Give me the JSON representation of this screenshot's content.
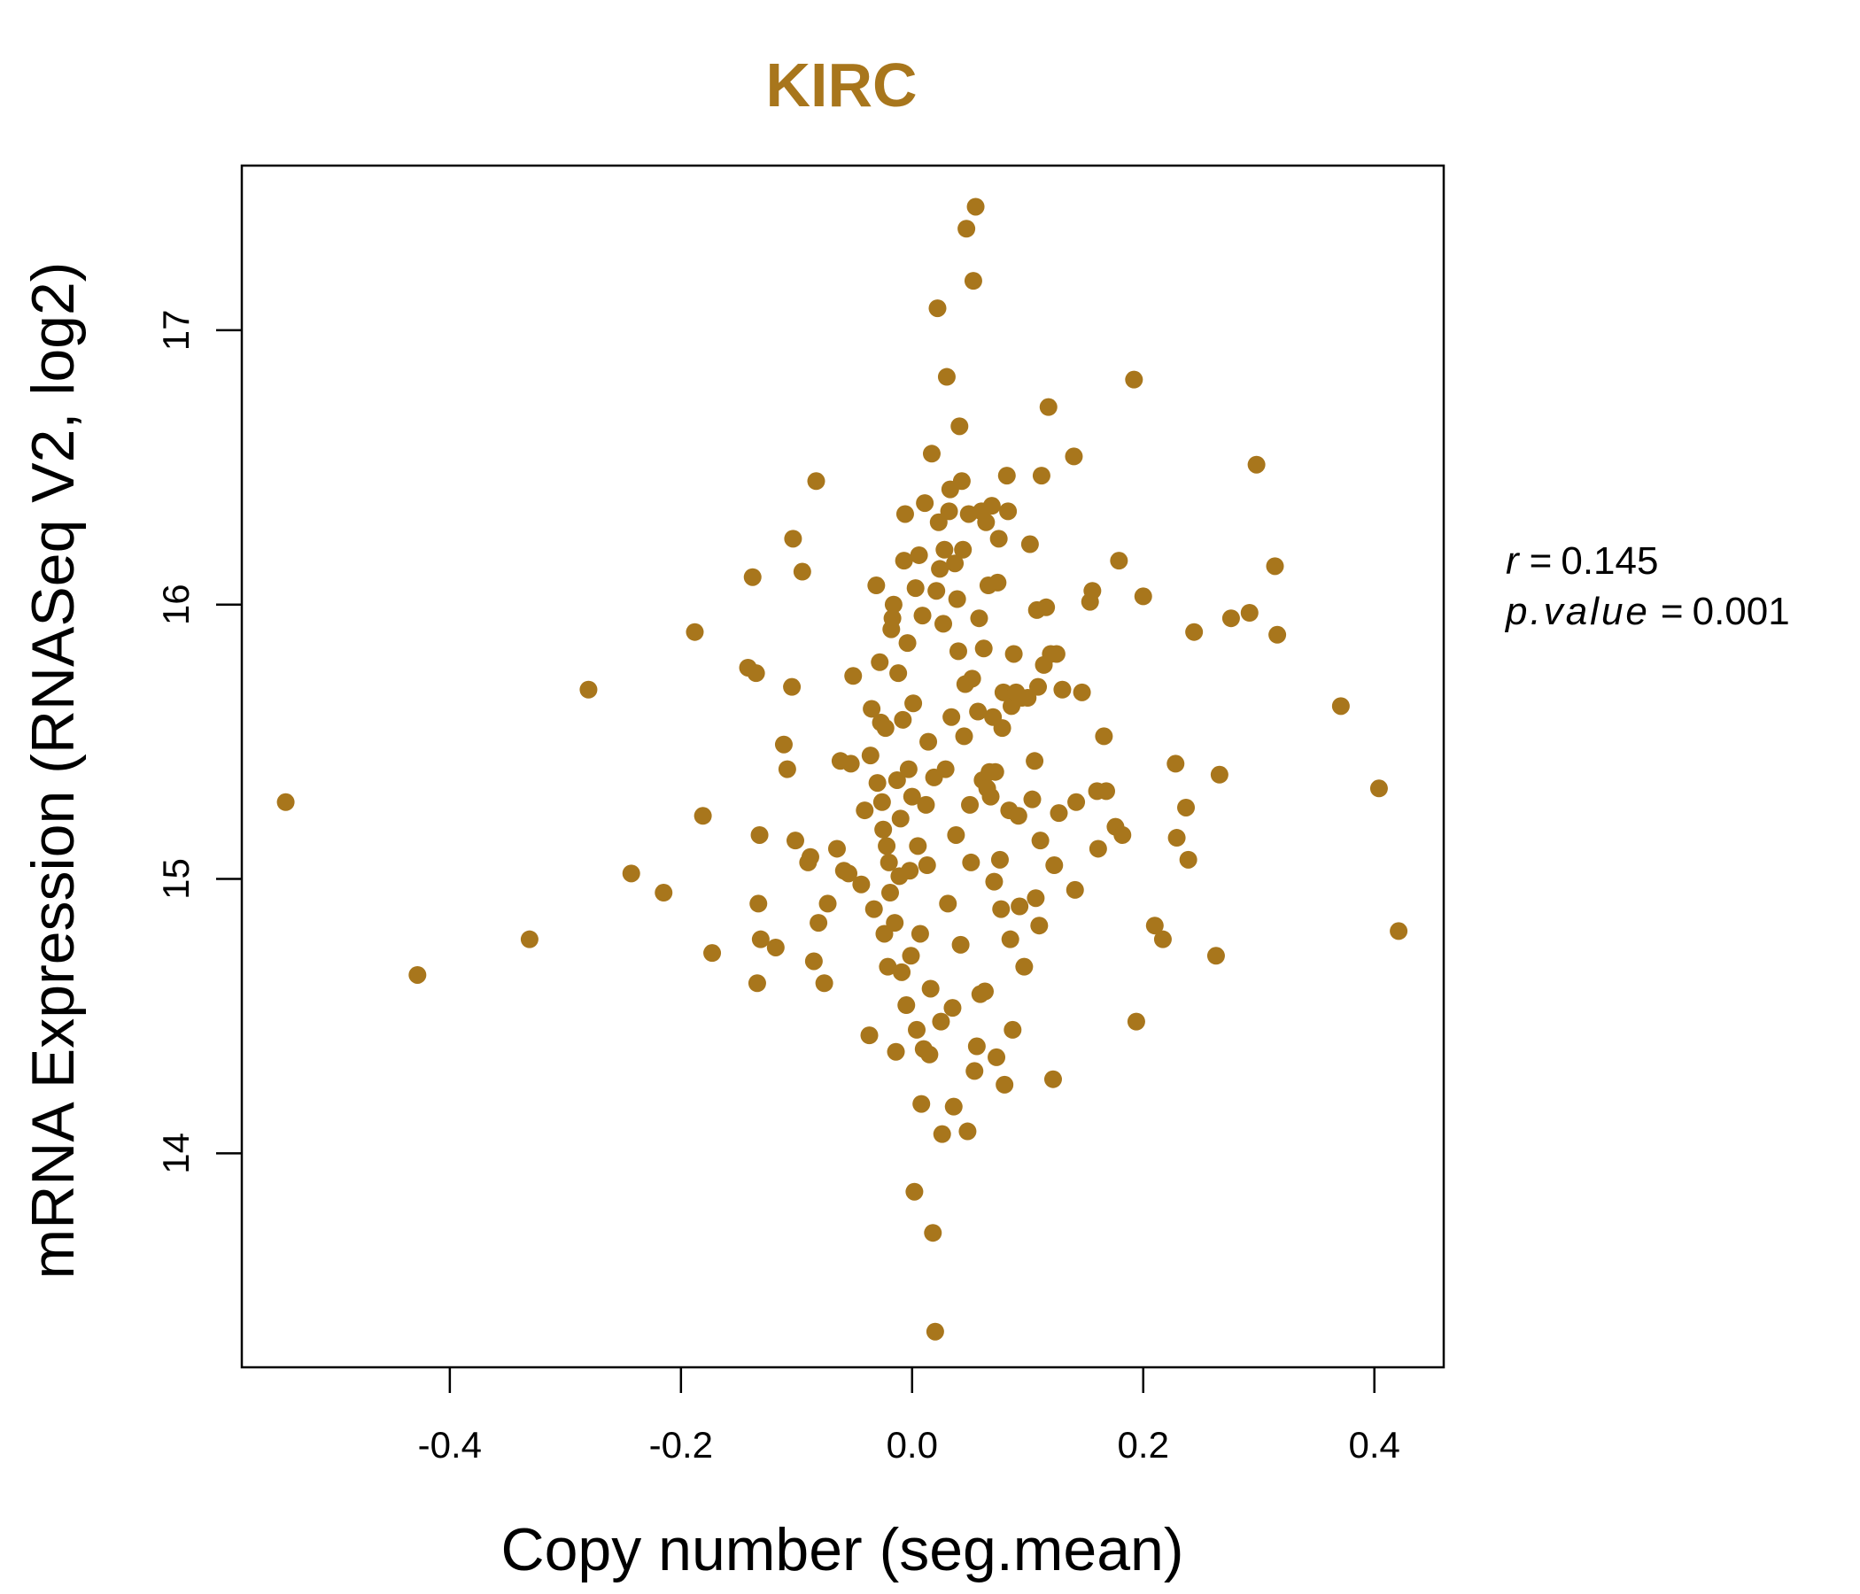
{
  "chart_data": {
    "type": "scatter",
    "title": "KIRC",
    "xlabel": "Copy number (seg.mean)",
    "ylabel": "mRNA Expression (RNASeq V2, log2)",
    "xlim": [
      -0.58,
      0.46
    ],
    "ylim": [
      13.22,
      17.6
    ],
    "x_ticks": [
      -0.4,
      -0.2,
      0.0,
      0.2,
      0.4
    ],
    "x_tick_labels": [
      "-0.4",
      "-0.2",
      "0.0",
      "0.2",
      "0.4"
    ],
    "y_ticks": [
      14,
      15,
      16,
      17
    ],
    "y_tick_labels": [
      "14",
      "15",
      "16",
      "17"
    ],
    "grid": false,
    "point_color": "#A8761C",
    "annotations": {
      "r_label": "r",
      "r_value": "0.145",
      "p_label": "p.value",
      "p_value": "0.001"
    },
    "points": [
      [
        -0.542,
        15.28
      ],
      [
        -0.428,
        14.65
      ],
      [
        -0.331,
        14.78
      ],
      [
        -0.28,
        15.69
      ],
      [
        -0.243,
        15.02
      ],
      [
        -0.215,
        14.95
      ],
      [
        -0.188,
        15.9
      ],
      [
        -0.181,
        15.23
      ],
      [
        -0.173,
        14.73
      ],
      [
        -0.142,
        15.77
      ],
      [
        -0.138,
        16.1
      ],
      [
        -0.135,
        15.75
      ],
      [
        -0.134,
        14.62
      ],
      [
        -0.133,
        14.91
      ],
      [
        -0.132,
        15.16
      ],
      [
        -0.131,
        14.78
      ],
      [
        -0.118,
        14.75
      ],
      [
        -0.111,
        15.49
      ],
      [
        -0.108,
        15.4
      ],
      [
        -0.104,
        15.7
      ],
      [
        -0.103,
        16.24
      ],
      [
        -0.101,
        15.14
      ],
      [
        -0.095,
        16.12
      ],
      [
        -0.09,
        15.06
      ],
      [
        -0.088,
        15.08
      ],
      [
        -0.085,
        14.7
      ],
      [
        -0.083,
        16.45
      ],
      [
        -0.081,
        14.84
      ],
      [
        -0.076,
        14.62
      ],
      [
        -0.073,
        14.91
      ],
      [
        -0.065,
        15.11
      ],
      [
        -0.062,
        15.43
      ],
      [
        -0.059,
        15.03
      ],
      [
        -0.055,
        15.02
      ],
      [
        -0.053,
        15.42
      ],
      [
        -0.051,
        15.74
      ],
      [
        -0.044,
        14.98
      ],
      [
        -0.041,
        15.25
      ],
      [
        -0.037,
        14.43
      ],
      [
        -0.036,
        15.45
      ],
      [
        -0.035,
        15.62
      ],
      [
        -0.033,
        14.89
      ],
      [
        -0.031,
        16.07
      ],
      [
        -0.03,
        15.35
      ],
      [
        -0.028,
        15.79
      ],
      [
        -0.027,
        15.57
      ],
      [
        -0.026,
        15.28
      ],
      [
        -0.025,
        15.18
      ],
      [
        -0.024,
        14.8
      ],
      [
        -0.023,
        15.55
      ],
      [
        -0.022,
        15.12
      ],
      [
        -0.021,
        14.68
      ],
      [
        -0.02,
        15.06
      ],
      [
        -0.019,
        14.95
      ],
      [
        -0.018,
        15.91
      ],
      [
        -0.017,
        15.95
      ],
      [
        -0.016,
        16.0
      ],
      [
        -0.015,
        14.84
      ],
      [
        -0.014,
        14.37
      ],
      [
        -0.013,
        15.36
      ],
      [
        -0.012,
        15.75
      ],
      [
        -0.011,
        15.01
      ],
      [
        -0.01,
        15.22
      ],
      [
        -0.009,
        14.66
      ],
      [
        -0.008,
        15.58
      ],
      [
        -0.007,
        16.16
      ],
      [
        -0.006,
        16.33
      ],
      [
        -0.005,
        14.54
      ],
      [
        -0.004,
        15.86
      ],
      [
        -0.003,
        15.4
      ],
      [
        -0.002,
        15.03
      ],
      [
        -0.001,
        14.72
      ],
      [
        0.0,
        15.3
      ],
      [
        0.001,
        15.64
      ],
      [
        0.002,
        13.86
      ],
      [
        0.003,
        16.06
      ],
      [
        0.004,
        14.45
      ],
      [
        0.005,
        15.12
      ],
      [
        0.006,
        16.18
      ],
      [
        0.007,
        14.8
      ],
      [
        0.008,
        14.18
      ],
      [
        0.009,
        15.96
      ],
      [
        0.01,
        14.38
      ],
      [
        0.011,
        16.37
      ],
      [
        0.012,
        15.27
      ],
      [
        0.013,
        15.05
      ],
      [
        0.014,
        15.5
      ],
      [
        0.015,
        14.36
      ],
      [
        0.016,
        14.6
      ],
      [
        0.017,
        16.55
      ],
      [
        0.018,
        13.71
      ],
      [
        0.019,
        15.37
      ],
      [
        0.02,
        13.35
      ],
      [
        0.021,
        16.05
      ],
      [
        0.022,
        17.08
      ],
      [
        0.023,
        16.3
      ],
      [
        0.024,
        16.13
      ],
      [
        0.025,
        14.48
      ],
      [
        0.026,
        14.07
      ],
      [
        0.027,
        15.93
      ],
      [
        0.028,
        16.2
      ],
      [
        0.029,
        15.4
      ],
      [
        0.03,
        16.83
      ],
      [
        0.031,
        14.91
      ],
      [
        0.032,
        16.34
      ],
      [
        0.033,
        16.42
      ],
      [
        0.034,
        15.59
      ],
      [
        0.035,
        14.53
      ],
      [
        0.036,
        14.17
      ],
      [
        0.037,
        16.15
      ],
      [
        0.038,
        15.16
      ],
      [
        0.039,
        16.02
      ],
      [
        0.04,
        15.83
      ],
      [
        0.041,
        16.65
      ],
      [
        0.042,
        14.76
      ],
      [
        0.043,
        16.45
      ],
      [
        0.044,
        16.2
      ],
      [
        0.045,
        15.52
      ],
      [
        0.046,
        15.71
      ],
      [
        0.047,
        17.37
      ],
      [
        0.048,
        14.08
      ],
      [
        0.049,
        16.33
      ],
      [
        0.05,
        15.27
      ],
      [
        0.051,
        15.06
      ],
      [
        0.052,
        15.73
      ],
      [
        0.053,
        17.18
      ],
      [
        0.054,
        14.3
      ],
      [
        0.055,
        17.45
      ],
      [
        0.056,
        14.39
      ],
      [
        0.057,
        15.61
      ],
      [
        0.058,
        15.95
      ],
      [
        0.059,
        14.58
      ],
      [
        0.06,
        16.34
      ],
      [
        0.061,
        15.36
      ],
      [
        0.062,
        15.84
      ],
      [
        0.063,
        14.59
      ],
      [
        0.064,
        16.3
      ],
      [
        0.065,
        15.33
      ],
      [
        0.066,
        16.07
      ],
      [
        0.067,
        15.39
      ],
      [
        0.068,
        15.3
      ],
      [
        0.069,
        16.36
      ],
      [
        0.07,
        15.59
      ],
      [
        0.071,
        14.99
      ],
      [
        0.072,
        15.39
      ],
      [
        0.073,
        14.35
      ],
      [
        0.074,
        16.08
      ],
      [
        0.075,
        16.24
      ],
      [
        0.076,
        15.07
      ],
      [
        0.077,
        14.89
      ],
      [
        0.078,
        15.55
      ],
      [
        0.079,
        15.68
      ],
      [
        0.08,
        14.25
      ],
      [
        0.082,
        16.47
      ],
      [
        0.083,
        16.34
      ],
      [
        0.084,
        15.25
      ],
      [
        0.085,
        14.78
      ],
      [
        0.086,
        15.63
      ],
      [
        0.087,
        14.45
      ],
      [
        0.088,
        15.82
      ],
      [
        0.09,
        15.68
      ],
      [
        0.092,
        15.23
      ],
      [
        0.093,
        14.9
      ],
      [
        0.095,
        15.66
      ],
      [
        0.097,
        14.68
      ],
      [
        0.1,
        15.66
      ],
      [
        0.102,
        16.22
      ],
      [
        0.104,
        15.29
      ],
      [
        0.106,
        15.43
      ],
      [
        0.107,
        14.93
      ],
      [
        0.108,
        15.98
      ],
      [
        0.109,
        15.7
      ],
      [
        0.11,
        14.83
      ],
      [
        0.111,
        15.14
      ],
      [
        0.112,
        16.47
      ],
      [
        0.114,
        15.78
      ],
      [
        0.116,
        15.99
      ],
      [
        0.118,
        16.72
      ],
      [
        0.12,
        15.82
      ],
      [
        0.122,
        14.27
      ],
      [
        0.123,
        15.05
      ],
      [
        0.125,
        15.82
      ],
      [
        0.127,
        15.24
      ],
      [
        0.13,
        15.69
      ],
      [
        0.14,
        16.54
      ],
      [
        0.141,
        14.96
      ],
      [
        0.142,
        15.28
      ],
      [
        0.147,
        15.68
      ],
      [
        0.154,
        16.01
      ],
      [
        0.156,
        16.05
      ],
      [
        0.16,
        15.32
      ],
      [
        0.161,
        15.11
      ],
      [
        0.166,
        15.52
      ],
      [
        0.168,
        15.32
      ],
      [
        0.176,
        15.19
      ],
      [
        0.179,
        16.16
      ],
      [
        0.182,
        15.16
      ],
      [
        0.192,
        16.82
      ],
      [
        0.194,
        14.48
      ],
      [
        0.2,
        16.03
      ],
      [
        0.21,
        14.83
      ],
      [
        0.217,
        14.78
      ],
      [
        0.228,
        15.42
      ],
      [
        0.229,
        15.15
      ],
      [
        0.237,
        15.26
      ],
      [
        0.239,
        15.07
      ],
      [
        0.244,
        15.9
      ],
      [
        0.263,
        14.72
      ],
      [
        0.266,
        15.38
      ],
      [
        0.276,
        15.95
      ],
      [
        0.292,
        15.97
      ],
      [
        0.298,
        16.51
      ],
      [
        0.314,
        16.14
      ],
      [
        0.316,
        15.89
      ],
      [
        0.371,
        15.63
      ],
      [
        0.404,
        15.33
      ],
      [
        0.421,
        14.81
      ]
    ]
  }
}
